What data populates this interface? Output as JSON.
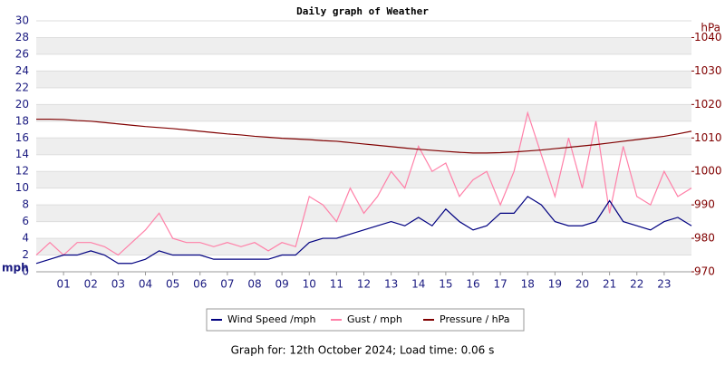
{
  "chart_data": {
    "type": "line",
    "title": "Daily graph of Weather",
    "y_label": "mph",
    "y2_label": "hPa",
    "footer": "Graph for: 12th October 2024; Load time: 0.06 s",
    "x": [
      0,
      0.5,
      1,
      1.5,
      2,
      2.5,
      3,
      3.5,
      4,
      4.5,
      5,
      5.5,
      6,
      6.5,
      7,
      7.5,
      8,
      8.5,
      9,
      9.5,
      10,
      10.5,
      11,
      11.5,
      12,
      12.5,
      13,
      13.5,
      14,
      14.5,
      15,
      15.5,
      16,
      16.5,
      17,
      17.5,
      18,
      18.5,
      19,
      19.5,
      20,
      20.5,
      21,
      21.5,
      22,
      22.5,
      23,
      23.5,
      24
    ],
    "xlim": [
      0,
      24
    ],
    "xticks": [
      {
        "value": 1,
        "label": "01"
      },
      {
        "value": 2,
        "label": "02"
      },
      {
        "value": 3,
        "label": "03"
      },
      {
        "value": 4,
        "label": "04"
      },
      {
        "value": 5,
        "label": "05"
      },
      {
        "value": 6,
        "label": "06"
      },
      {
        "value": 7,
        "label": "07"
      },
      {
        "value": 8,
        "label": "08"
      },
      {
        "value": 9,
        "label": "09"
      },
      {
        "value": 10,
        "label": "10"
      },
      {
        "value": 11,
        "label": "11"
      },
      {
        "value": 12,
        "label": "12"
      },
      {
        "value": 13,
        "label": "13"
      },
      {
        "value": 14,
        "label": "14"
      },
      {
        "value": 15,
        "label": "15"
      },
      {
        "value": 16,
        "label": "16"
      },
      {
        "value": 17,
        "label": "17"
      },
      {
        "value": 18,
        "label": "18"
      },
      {
        "value": 19,
        "label": "19"
      },
      {
        "value": 20,
        "label": "20"
      },
      {
        "value": 21,
        "label": "21"
      },
      {
        "value": 22,
        "label": "22"
      },
      {
        "value": 23,
        "label": "23"
      }
    ],
    "ylim": [
      0,
      30
    ],
    "yticks": [
      0,
      2,
      4,
      6,
      8,
      10,
      12,
      14,
      16,
      18,
      20,
      22,
      24,
      26,
      28,
      30
    ],
    "y2lim": [
      970,
      1045
    ],
    "y2ticks": [
      970,
      980,
      990,
      1000,
      1010,
      1020,
      1030,
      1040
    ],
    "grid": true,
    "series": [
      {
        "name": "Wind Speed /mph",
        "color": "#000080",
        "values": [
          1,
          1.5,
          2,
          2,
          2.5,
          2,
          1,
          1,
          1.5,
          2.5,
          2,
          2,
          2,
          1.5,
          1.5,
          1.5,
          1.5,
          1.5,
          2,
          2,
          3.5,
          4,
          4,
          4.5,
          5,
          5.5,
          6,
          5.5,
          6.5,
          5.5,
          7.5,
          6,
          5,
          5.5,
          7,
          7,
          9,
          8,
          6,
          5.5,
          5.5,
          6,
          8.5,
          6,
          5.5,
          5,
          6,
          6.5,
          5.5
        ]
      },
      {
        "name": "Gust / mph",
        "color": "#ff80a8",
        "values": [
          2,
          3.5,
          2,
          3.5,
          3.5,
          3,
          2,
          3.5,
          5,
          7,
          4,
          3.5,
          3.5,
          3,
          3.5,
          3,
          3.5,
          2.5,
          3.5,
          3,
          9,
          8,
          6,
          10,
          7,
          9,
          12,
          10,
          15,
          12,
          13,
          9,
          11,
          12,
          8,
          12,
          19,
          14,
          9,
          16,
          10,
          18,
          7,
          15,
          9,
          8,
          12,
          9,
          10
        ]
      },
      {
        "name": "Pressure / hPa",
        "color": "#800000",
        "axis": "y2",
        "values": [
          1015.6,
          1015.6,
          1015.5,
          1015.2,
          1015,
          1014.6,
          1014.2,
          1013.8,
          1013.4,
          1013.1,
          1012.8,
          1012.4,
          1012,
          1011.6,
          1011.2,
          1010.9,
          1010.5,
          1010.2,
          1009.9,
          1009.7,
          1009.5,
          1009.2,
          1009,
          1008.6,
          1008.2,
          1007.8,
          1007.4,
          1007,
          1006.6,
          1006.3,
          1006,
          1005.7,
          1005.5,
          1005.5,
          1005.6,
          1005.8,
          1006.1,
          1006.4,
          1006.8,
          1007.2,
          1007.6,
          1008,
          1008.5,
          1009,
          1009.5,
          1010,
          1010.5,
          1011.2,
          1012
        ]
      }
    ]
  }
}
